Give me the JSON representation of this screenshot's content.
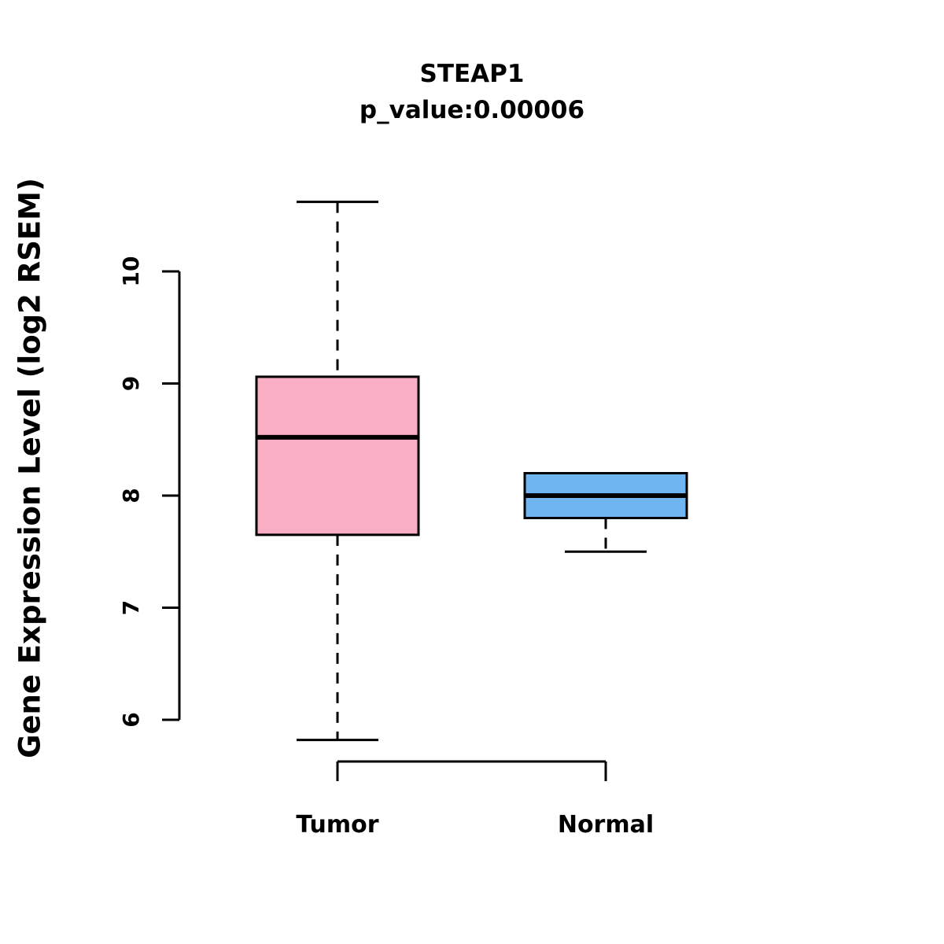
{
  "chart_data": {
    "type": "box",
    "title": "STEAP1",
    "subtitle": "p_value:0.00006",
    "ylabel": "Gene Expression Level (log2 RSEM)",
    "xlabel": "",
    "ylim": [
      5.5,
      10.8
    ],
    "yticks": [
      6,
      7,
      8,
      9,
      10
    ],
    "grid": false,
    "legend": "none",
    "categories": [
      "Tumor",
      "Normal"
    ],
    "series": [
      {
        "name": "Tumor",
        "color": "#F9AEC3",
        "whisker_low": 5.82,
        "q1": 7.65,
        "median": 8.52,
        "q3": 9.06,
        "whisker_high": 10.62
      },
      {
        "name": "Normal",
        "color": "#6EB5F2",
        "whisker_low": 7.5,
        "q1": 7.8,
        "median": 8.0,
        "q3": 8.2,
        "whisker_high": 8.2
      }
    ]
  }
}
